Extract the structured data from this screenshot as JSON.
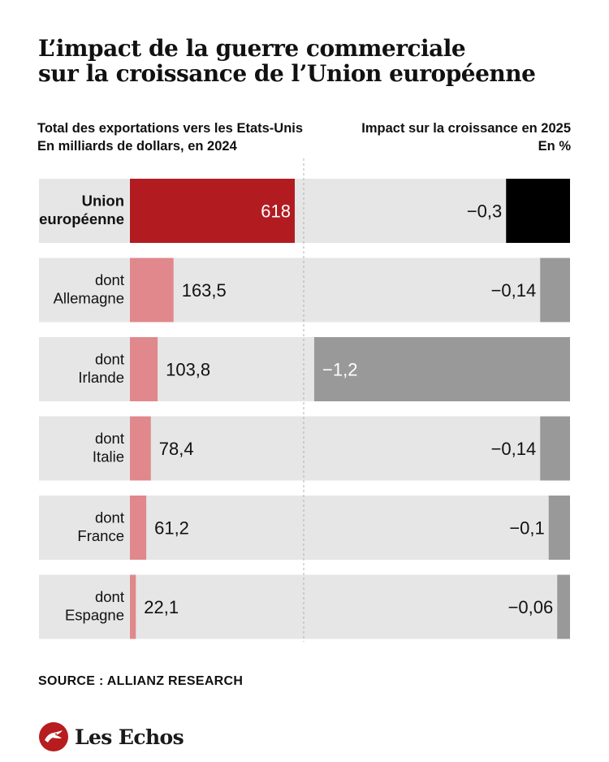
{
  "title": {
    "line1": "L’impact de la guerre commerciale",
    "line2": "sur la croissance de l’Union européenne"
  },
  "headers": {
    "left_line1": "Total des exportations vers les Etats-Unis",
    "left_line2": "En milliards de dollars, en 2024",
    "right_line1": "Impact sur la croissance en 2025",
    "right_line2": "En %"
  },
  "chart_data": {
    "type": "bar",
    "categories": [
      [
        "Union",
        "européenne"
      ],
      [
        "dont",
        "Allemagne"
      ],
      [
        "dont",
        "Irlande"
      ],
      [
        "dont",
        "Italie"
      ],
      [
        "dont",
        "France"
      ],
      [
        "dont",
        "Espagne"
      ]
    ],
    "series": [
      {
        "values": [
          618,
          163.5,
          103.8,
          78.4,
          61.2,
          22.1
        ],
        "labels": [
          "618",
          "163,5",
          "103,8",
          "78,4",
          "61,2",
          "22,1"
        ]
      },
      {
        "values": [
          -0.3,
          -0.14,
          -1.2,
          -0.14,
          -0.1,
          -0.06
        ],
        "labels": [
          "−0,3",
          "−0,14",
          "−1,2",
          "−0,14",
          "−0,1",
          "−0,06"
        ]
      }
    ],
    "colors": {
      "row_background": "#e6e6e6",
      "eu_export": "#b21c21",
      "country_export": "#e0888c",
      "eu_impact": "#000000",
      "country_impact": "#999999",
      "divider": "#b0b0b0"
    }
  },
  "source": "SOURCE : ALLIANZ RESEARCH",
  "brand": {
    "name": "Les Echos",
    "icon": "les-echos-logo-icon"
  }
}
